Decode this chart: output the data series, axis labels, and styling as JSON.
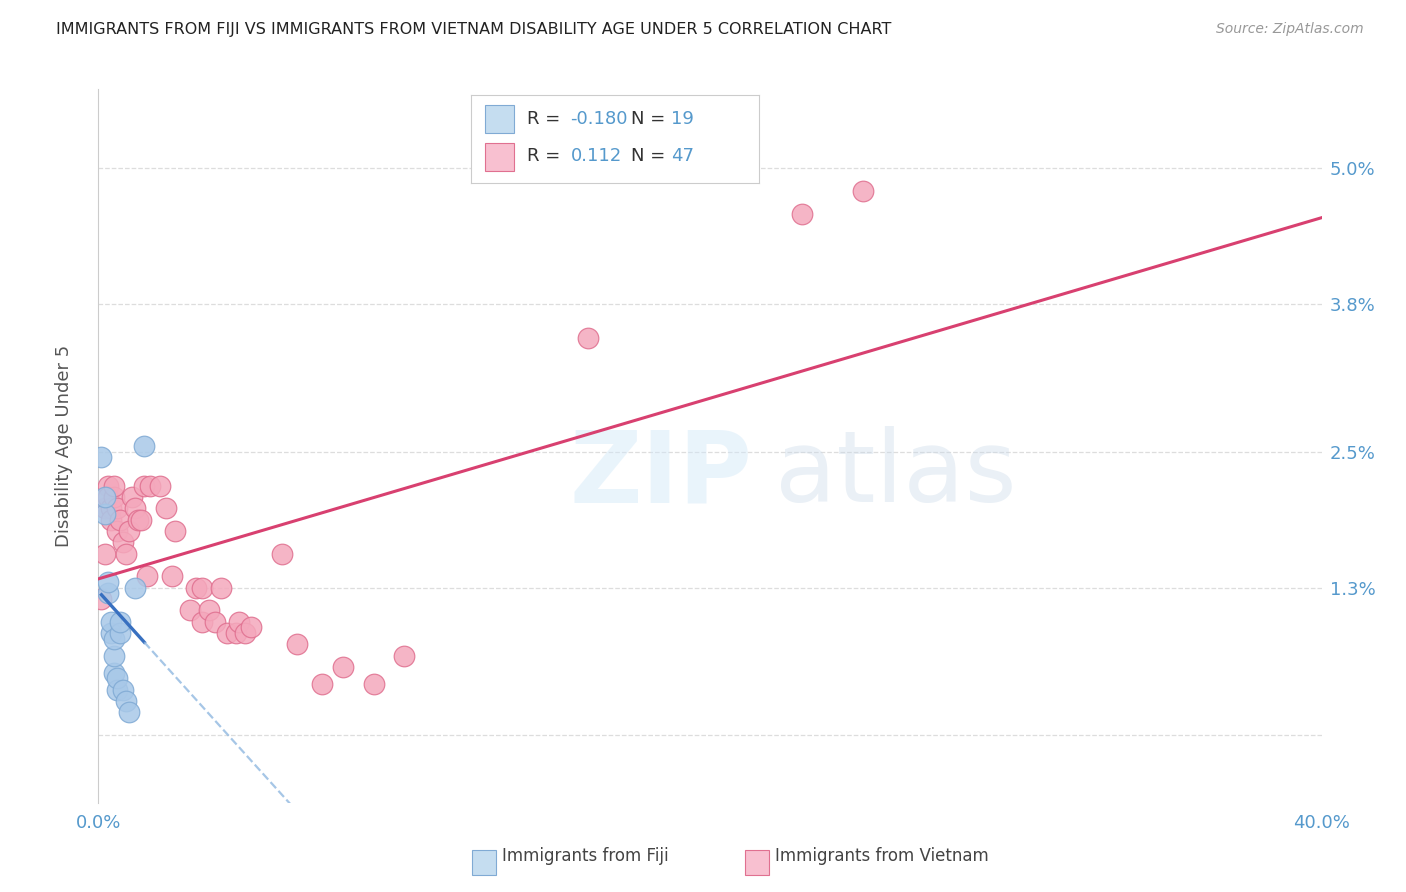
{
  "title": "IMMIGRANTS FROM FIJI VS IMMIGRANTS FROM VIETNAM DISABILITY AGE UNDER 5 CORRELATION CHART",
  "source": "Source: ZipAtlas.com",
  "ylabel": "Disability Age Under 5",
  "ytick_vals": [
    0.0,
    0.013,
    0.025,
    0.038,
    0.05
  ],
  "ytick_labels": [
    "",
    "1.3%",
    "2.5%",
    "3.8%",
    "5.0%"
  ],
  "xtick_vals": [
    0.0,
    0.4
  ],
  "xtick_labels": [
    "0.0%",
    "40.0%"
  ],
  "xmin": 0.0,
  "xmax": 0.4,
  "ymin": -0.006,
  "ymax": 0.057,
  "fiji_color": "#a8c8e8",
  "fiji_edge_color": "#80aad4",
  "vietnam_color": "#f4a8bc",
  "vietnam_edge_color": "#e07090",
  "fiji_R": -0.18,
  "fiji_N": 19,
  "vietnam_R": 0.112,
  "vietnam_N": 47,
  "fiji_x": [
    0.001,
    0.002,
    0.002,
    0.003,
    0.003,
    0.004,
    0.004,
    0.005,
    0.005,
    0.005,
    0.006,
    0.006,
    0.007,
    0.007,
    0.008,
    0.009,
    0.01,
    0.012,
    0.015
  ],
  "fiji_y": [
    0.0245,
    0.0195,
    0.021,
    0.0125,
    0.0135,
    0.009,
    0.01,
    0.0055,
    0.007,
    0.0085,
    0.004,
    0.005,
    0.009,
    0.01,
    0.004,
    0.003,
    0.002,
    0.013,
    0.0255
  ],
  "vietnam_x": [
    0.001,
    0.002,
    0.002,
    0.003,
    0.003,
    0.004,
    0.004,
    0.005,
    0.005,
    0.006,
    0.006,
    0.007,
    0.008,
    0.009,
    0.01,
    0.011,
    0.012,
    0.013,
    0.014,
    0.015,
    0.016,
    0.017,
    0.02,
    0.022,
    0.024,
    0.025,
    0.03,
    0.032,
    0.034,
    0.034,
    0.036,
    0.038,
    0.04,
    0.042,
    0.045,
    0.046,
    0.048,
    0.05,
    0.06,
    0.065,
    0.073,
    0.08,
    0.09,
    0.1,
    0.16,
    0.23,
    0.25
  ],
  "vietnam_y": [
    0.012,
    0.016,
    0.02,
    0.022,
    0.021,
    0.02,
    0.019,
    0.021,
    0.022,
    0.02,
    0.018,
    0.019,
    0.017,
    0.016,
    0.018,
    0.021,
    0.02,
    0.019,
    0.019,
    0.022,
    0.014,
    0.022,
    0.022,
    0.02,
    0.014,
    0.018,
    0.011,
    0.013,
    0.01,
    0.013,
    0.011,
    0.01,
    0.013,
    0.009,
    0.009,
    0.01,
    0.009,
    0.0095,
    0.016,
    0.008,
    0.0045,
    0.006,
    0.0045,
    0.007,
    0.035,
    0.046,
    0.048
  ],
  "watermark_text": "ZIPatlas",
  "legend_fill_fiji": "#c5ddf0",
  "legend_fill_vietnam": "#f8c0d0",
  "grid_color": "#dddddd",
  "trend_fiji_solid_color": "#3870c0",
  "trend_fiji_dash_color": "#90b8e0",
  "trend_vietnam_color": "#d84070",
  "bg_color": "#ffffff",
  "tick_color": "#5599cc",
  "label_color": "#555555",
  "title_color": "#222222",
  "source_color": "#999999"
}
